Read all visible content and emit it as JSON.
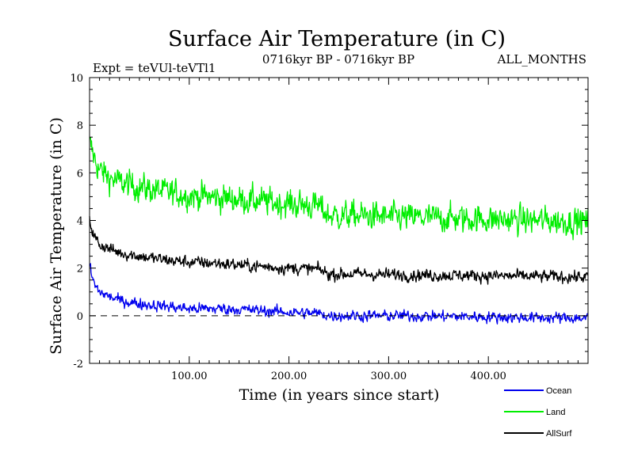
{
  "chart_data": {
    "type": "line",
    "title": "Surface Air Temperature (in C)",
    "expt_label": "Expt = teVUl-teVTl1",
    "period_label": "0716kyr BP - 0716kyr BP",
    "season_label": "ALL_MONTHS",
    "xlabel": "Time (in years since start)",
    "ylabel": "Surface Air Temperature (in C)",
    "xlim": [
      0,
      500
    ],
    "ylim": [
      -2,
      10
    ],
    "x_ticks": [
      {
        "value": 100,
        "label": "100.00"
      },
      {
        "value": 200,
        "label": "200.00"
      },
      {
        "value": 300,
        "label": "300.00"
      },
      {
        "value": 400,
        "label": "400.00"
      }
    ],
    "y_ticks": [
      {
        "value": -2,
        "label": "-2"
      },
      {
        "value": 0,
        "label": "0"
      },
      {
        "value": 2,
        "label": "2"
      },
      {
        "value": 4,
        "label": "4"
      },
      {
        "value": 6,
        "label": "6"
      },
      {
        "value": 8,
        "label": "8"
      },
      {
        "value": 10,
        "label": "10"
      }
    ],
    "zero_line": 0,
    "series": [
      {
        "name": "Land",
        "color": "#00ee00",
        "x": [
          0,
          2,
          5,
          10,
          20,
          30,
          50,
          75,
          100,
          130,
          160,
          200,
          230,
          240,
          270,
          300,
          350,
          400,
          450,
          500
        ],
        "values": [
          7.2,
          7.0,
          6.6,
          6.1,
          5.8,
          5.6,
          5.4,
          5.2,
          5.05,
          4.95,
          4.85,
          4.7,
          4.6,
          4.2,
          4.2,
          4.15,
          4.1,
          4.05,
          4.0,
          3.95
        ],
        "noise": 0.75
      },
      {
        "name": "AllSurf",
        "color": "#000000",
        "x": [
          0,
          2,
          5,
          10,
          20,
          30,
          50,
          75,
          100,
          130,
          160,
          200,
          230,
          240,
          270,
          300,
          350,
          400,
          450,
          500
        ],
        "values": [
          4.1,
          3.7,
          3.3,
          3.0,
          2.8,
          2.65,
          2.5,
          2.35,
          2.25,
          2.2,
          2.1,
          2.0,
          1.95,
          1.75,
          1.75,
          1.72,
          1.7,
          1.68,
          1.65,
          1.62
        ],
        "noise": 0.33
      },
      {
        "name": "Ocean",
        "color": "#0000ee",
        "x": [
          0,
          2,
          5,
          10,
          20,
          30,
          50,
          75,
          100,
          130,
          160,
          200,
          230,
          240,
          270,
          300,
          350,
          400,
          450,
          500
        ],
        "values": [
          2.2,
          1.7,
          1.3,
          1.0,
          0.8,
          0.65,
          0.5,
          0.4,
          0.3,
          0.3,
          0.25,
          0.15,
          0.1,
          0.0,
          0.0,
          0.0,
          -0.02,
          -0.05,
          -0.08,
          -0.1
        ],
        "noise": 0.3
      }
    ],
    "legend": [
      {
        "name": "Ocean",
        "color": "#0000ee"
      },
      {
        "name": "Land",
        "color": "#00ee00"
      },
      {
        "name": "AllSurf",
        "color": "#000000"
      }
    ]
  }
}
